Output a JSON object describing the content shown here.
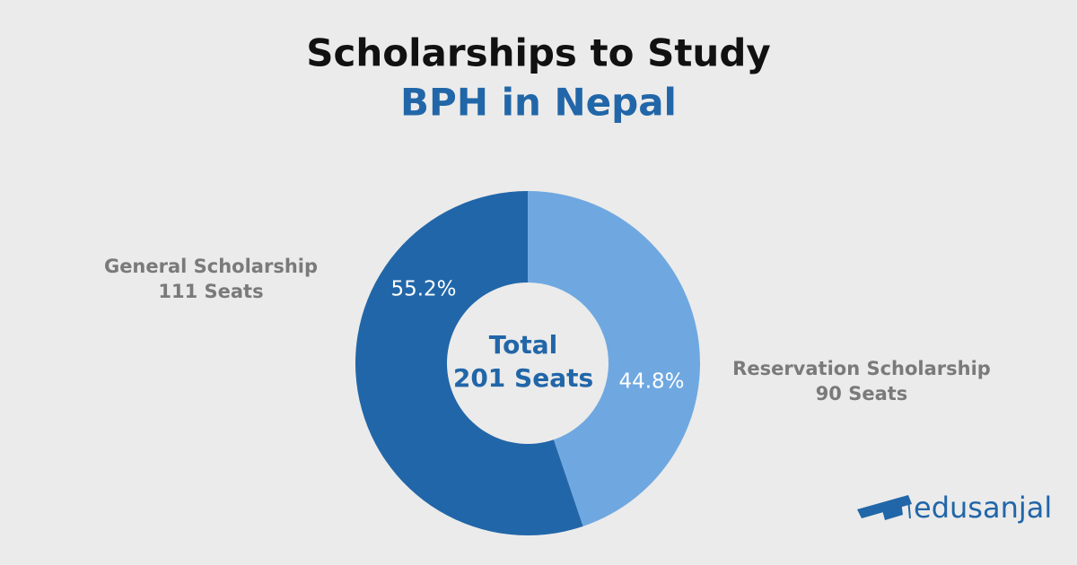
{
  "chart_data": {
    "type": "donut",
    "title": "Scholarships to Study",
    "subtitle": "BPH in Nepal",
    "categories": [
      "Reservation Scholarship",
      "General Scholarship"
    ],
    "category_notes": [
      "90 Seats",
      "111 Seats"
    ],
    "values": [
      44.8,
      55.2
    ],
    "value_labels": [
      "44.8%",
      "55.2%"
    ],
    "colors": [
      "#6fa8e0",
      "#2166a8"
    ],
    "center_label": [
      "Total",
      "201 Seats"
    ]
  },
  "logo": {
    "text": "edusanjal"
  }
}
